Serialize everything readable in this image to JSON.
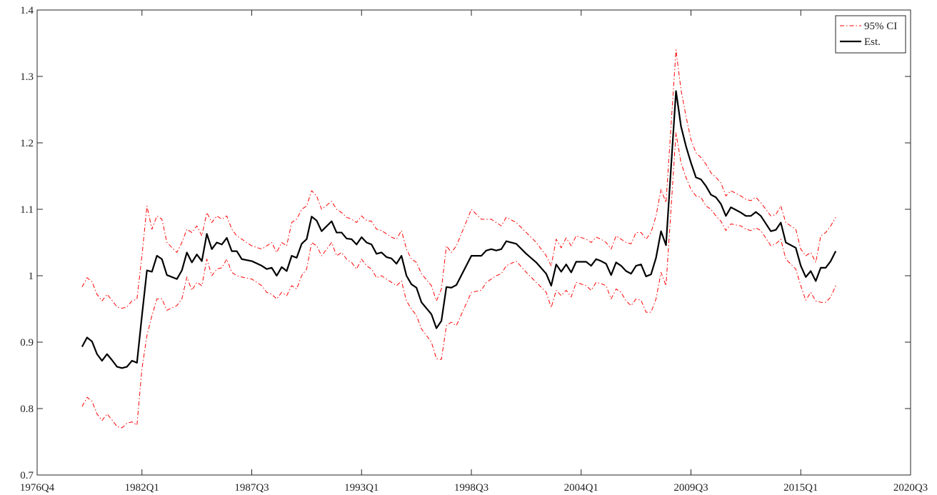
{
  "chart_data": {
    "type": "line",
    "x": [
      1979.0,
      1979.25,
      1979.5,
      1979.75,
      1980.0,
      1980.25,
      1980.5,
      1980.75,
      1981.0,
      1981.25,
      1981.5,
      1981.75,
      1982.0,
      1982.25,
      1982.5,
      1982.75,
      1983.0,
      1983.25,
      1983.75,
      1984.0,
      1984.25,
      1984.5,
      1984.75,
      1985.0,
      1985.25,
      1985.5,
      1985.75,
      1986.0,
      1986.25,
      1986.5,
      1986.75,
      1987.0,
      1987.5,
      1988.0,
      1988.25,
      1988.5,
      1988.75,
      1989.0,
      1989.25,
      1989.5,
      1989.75,
      1990.0,
      1990.25,
      1990.5,
      1990.75,
      1991.0,
      1991.5,
      1991.75,
      1992.0,
      1992.25,
      1992.5,
      1992.75,
      1993.0,
      1993.25,
      1993.5,
      1993.75,
      1994.0,
      1994.25,
      1994.5,
      1994.75,
      1995.0,
      1995.25,
      1995.5,
      1995.75,
      1996.0,
      1996.5,
      1996.75,
      1997.0,
      1997.25,
      1997.5,
      1997.75,
      1998.5,
      1999.0,
      1999.25,
      1999.5,
      1999.75,
      2000.0,
      2000.25,
      2000.75,
      2001.25,
      2001.75,
      2002.25,
      2002.5,
      2002.75,
      2003.0,
      2003.25,
      2003.5,
      2003.75,
      2004.25,
      2004.5,
      2004.75,
      2005.0,
      2005.25,
      2005.5,
      2005.75,
      2006.0,
      2006.25,
      2006.5,
      2006.75,
      2007.0,
      2007.25,
      2007.5,
      2007.75,
      2008.0,
      2008.25,
      2008.75,
      2009.0,
      2009.25,
      2009.5,
      2009.75,
      2010.0,
      2010.25,
      2010.5,
      2010.75,
      2011.0,
      2011.25,
      2011.5,
      2012.0,
      2012.25,
      2012.5,
      2012.75,
      2013.0,
      2013.5,
      2013.75,
      2014.0,
      2014.25,
      2014.75,
      2015.0,
      2015.25,
      2015.5,
      2015.75,
      2016.0,
      2016.25,
      2016.5,
      2016.75
    ],
    "series": [
      {
        "name": "95% CI",
        "color": "#ff0000",
        "style": "dashdot",
        "upper": [
          0.983,
          0.997,
          0.991,
          0.972,
          0.962,
          0.972,
          0.963,
          0.953,
          0.951,
          0.953,
          0.962,
          0.965,
          1.03,
          1.105,
          1.07,
          1.09,
          1.085,
          1.05,
          1.035,
          1.05,
          1.07,
          1.065,
          1.075,
          1.06,
          1.095,
          1.08,
          1.09,
          1.085,
          1.09,
          1.07,
          1.06,
          1.055,
          1.045,
          1.04,
          1.045,
          1.05,
          1.035,
          1.05,
          1.045,
          1.08,
          1.085,
          1.1,
          1.105,
          1.128,
          1.12,
          1.1,
          1.112,
          1.1,
          1.095,
          1.088,
          1.085,
          1.08,
          1.09,
          1.083,
          1.082,
          1.07,
          1.068,
          1.063,
          1.058,
          1.055,
          1.068,
          1.04,
          1.025,
          1.02,
          1.003,
          0.985,
          0.962,
          0.98,
          1.045,
          1.035,
          1.045,
          1.1,
          1.085,
          1.085,
          1.085,
          1.08,
          1.075,
          1.088,
          1.08,
          1.065,
          1.05,
          1.03,
          1.015,
          1.055,
          1.042,
          1.057,
          1.045,
          1.06,
          1.055,
          1.05,
          1.058,
          1.055,
          1.05,
          1.04,
          1.06,
          1.055,
          1.05,
          1.048,
          1.065,
          1.065,
          1.055,
          1.065,
          1.09,
          1.13,
          1.11,
          1.34,
          1.28,
          1.24,
          1.205,
          1.185,
          1.178,
          1.168,
          1.155,
          1.148,
          1.14,
          1.12,
          1.128,
          1.12,
          1.115,
          1.113,
          1.118,
          1.11,
          1.09,
          1.092,
          1.105,
          1.08,
          1.07,
          1.04,
          1.03,
          1.035,
          1.02,
          1.06,
          1.065,
          1.075,
          1.088
        ],
        "lower": [
          0.803,
          0.817,
          0.811,
          0.792,
          0.782,
          0.792,
          0.783,
          0.773,
          0.771,
          0.778,
          0.78,
          0.775,
          0.86,
          0.91,
          0.94,
          0.965,
          0.965,
          0.948,
          0.955,
          0.965,
          0.998,
          0.978,
          0.99,
          0.985,
          1.025,
          1.0,
          1.01,
          1.012,
          1.025,
          1.005,
          1.0,
          0.998,
          0.995,
          0.985,
          0.975,
          0.972,
          0.965,
          0.975,
          0.97,
          0.985,
          0.98,
          1.0,
          1.01,
          1.05,
          1.045,
          1.03,
          1.05,
          1.03,
          1.035,
          1.025,
          1.02,
          1.01,
          1.025,
          1.015,
          1.01,
          0.997,
          1.0,
          0.995,
          0.99,
          0.985,
          0.992,
          0.962,
          0.95,
          0.94,
          0.92,
          0.9,
          0.875,
          0.874,
          0.925,
          0.93,
          0.925,
          0.975,
          0.978,
          0.99,
          0.995,
          1.0,
          1.003,
          1.015,
          1.022,
          1.005,
          0.99,
          0.975,
          0.952,
          0.978,
          0.97,
          0.978,
          0.968,
          0.99,
          0.985,
          0.978,
          0.99,
          0.988,
          0.985,
          0.965,
          0.98,
          0.975,
          0.962,
          0.955,
          0.965,
          0.963,
          0.945,
          0.945,
          0.965,
          1.005,
          0.985,
          1.215,
          1.17,
          1.148,
          1.13,
          1.12,
          1.118,
          1.105,
          1.1,
          1.09,
          1.082,
          1.068,
          1.078,
          1.075,
          1.07,
          1.068,
          1.072,
          1.068,
          1.045,
          1.048,
          1.055,
          1.025,
          1.01,
          0.985,
          0.963,
          0.975,
          0.962,
          0.96,
          0.96,
          0.968,
          0.985
        ]
      },
      {
        "name": "Est.",
        "color": "#000000",
        "style": "solid",
        "values": [
          0.893,
          0.907,
          0.901,
          0.882,
          0.872,
          0.882,
          0.873,
          0.863,
          0.861,
          0.863,
          0.872,
          0.869,
          0.94,
          1.008,
          1.006,
          1.03,
          1.025,
          1.001,
          0.995,
          1.008,
          1.035,
          1.02,
          1.032,
          1.022,
          1.063,
          1.04,
          1.05,
          1.047,
          1.057,
          1.037,
          1.037,
          1.025,
          1.022,
          1.015,
          1.01,
          1.012,
          1.0,
          1.013,
          1.007,
          1.03,
          1.027,
          1.048,
          1.055,
          1.089,
          1.083,
          1.067,
          1.082,
          1.065,
          1.065,
          1.056,
          1.055,
          1.047,
          1.058,
          1.05,
          1.047,
          1.033,
          1.035,
          1.028,
          1.026,
          1.018,
          1.03,
          1.0,
          0.987,
          0.982,
          0.96,
          0.942,
          0.921,
          0.932,
          0.983,
          0.982,
          0.986,
          1.03,
          1.03,
          1.038,
          1.04,
          1.038,
          1.04,
          1.052,
          1.048,
          1.033,
          1.02,
          1.003,
          0.985,
          1.017,
          1.006,
          1.017,
          1.005,
          1.021,
          1.021,
          1.015,
          1.025,
          1.022,
          1.018,
          1.001,
          1.02,
          1.015,
          1.007,
          1.003,
          1.015,
          1.017,
          0.999,
          1.002,
          1.027,
          1.067,
          1.046,
          1.278,
          1.225,
          1.195,
          1.17,
          1.148,
          1.145,
          1.135,
          1.122,
          1.118,
          1.108,
          1.09,
          1.103,
          1.095,
          1.09,
          1.09,
          1.096,
          1.09,
          1.067,
          1.069,
          1.08,
          1.05,
          1.042,
          1.015,
          0.998,
          1.007,
          0.992,
          1.012,
          1.012,
          1.022,
          1.037
        ]
      }
    ],
    "xlim": [
      1976.75,
      2020.5
    ],
    "xticks": [
      {
        "value": 1976.75,
        "label": "1976Q4"
      },
      {
        "value": 1982.0,
        "label": "1982Q1"
      },
      {
        "value": 1987.5,
        "label": "1987Q3"
      },
      {
        "value": 1993.0,
        "label": "1993Q1"
      },
      {
        "value": 1998.5,
        "label": "1998Q3"
      },
      {
        "value": 2004.0,
        "label": "2004Q1"
      },
      {
        "value": 2009.5,
        "label": "2009Q3"
      },
      {
        "value": 2015.0,
        "label": "2015Q1"
      },
      {
        "value": 2020.5,
        "label": "2020Q3"
      }
    ],
    "ylim": [
      0.7,
      1.4
    ],
    "yticks": [
      0.7,
      0.8,
      0.9,
      1,
      1.1,
      1.2,
      1.3,
      1.4
    ],
    "grid": false,
    "legend": "top-right"
  }
}
